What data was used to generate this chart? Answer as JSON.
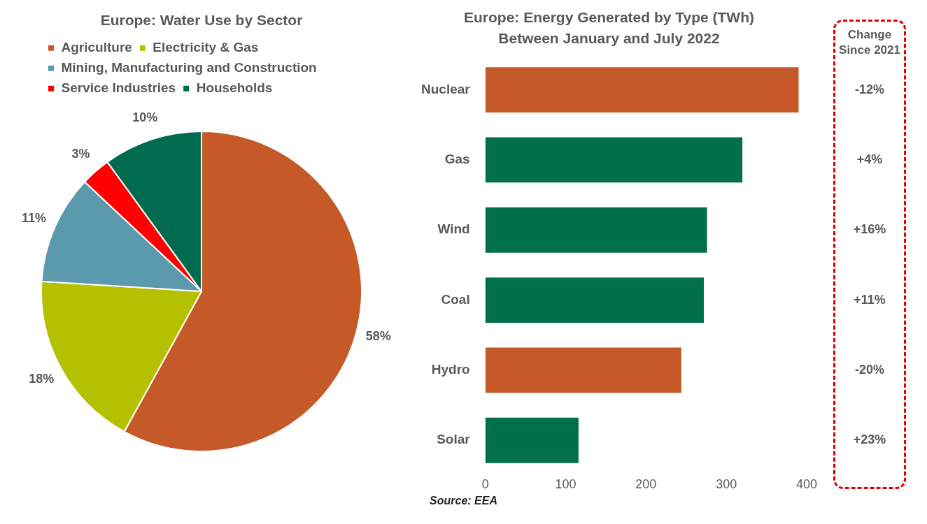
{
  "chart_data": [
    {
      "type": "pie",
      "title": "Europe: Water Use by Sector",
      "categories": [
        "Agriculture",
        "Electricity & Gas",
        "Mining, Manufacturing and Construction",
        "Service Industries",
        "Households"
      ],
      "values": [
        58,
        18,
        11,
        3,
        10
      ],
      "colors": [
        "#c55a28",
        "#b5c000",
        "#5b9aad",
        "#ff0000",
        "#006b4f"
      ],
      "value_labels": [
        "58%",
        "18%",
        "11%",
        "3%",
        "10%"
      ],
      "legend": "top left",
      "annotations": [
        "Source: EEA"
      ]
    },
    {
      "type": "bar",
      "orientation": "horizontal",
      "title": "Europe: Energy Generated by Type (TWh)",
      "subtitle": "Between January and July 2022",
      "categories": [
        "Nuclear",
        "Gas",
        "Wind",
        "Coal",
        "Hydro",
        "Solar"
      ],
      "values": [
        390,
        320,
        276,
        272,
        244,
        116
      ],
      "colors": [
        "#c55a28",
        "#00704a",
        "#00704a",
        "#00704a",
        "#c55a28",
        "#00704a"
      ],
      "xlim": [
        0,
        400
      ],
      "xticks": [
        0,
        100,
        200,
        300,
        400
      ],
      "grid": false,
      "annotations": [
        "Change Since 2021",
        "-12%",
        "+4%",
        "+16%",
        "+11%",
        "-20%",
        "+23%"
      ]
    }
  ]
}
